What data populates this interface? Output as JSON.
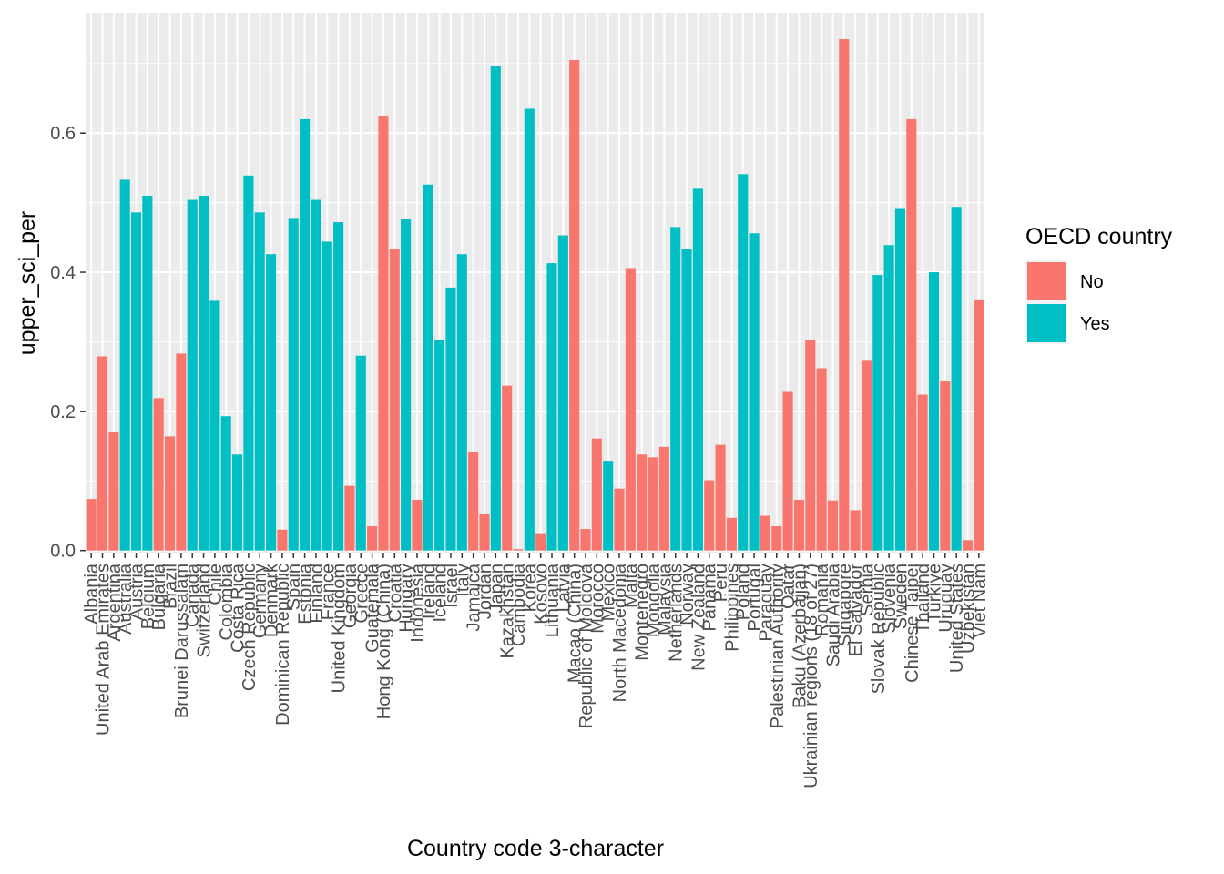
{
  "chart_data": {
    "type": "bar",
    "xlabel": "Country code 3-character",
    "ylabel": "upper_sci_per",
    "ylim": [
      -0.003,
      0.773
    ],
    "yticks": [
      0.0,
      0.2,
      0.4,
      0.6
    ],
    "ytick_labels": [
      "0.0",
      "0.2",
      "0.4",
      "0.6"
    ],
    "grid": true,
    "legend": {
      "title": "OECD country",
      "placement": "right",
      "entries": [
        {
          "label": "No",
          "key": "No",
          "color": "#F8766D"
        },
        {
          "label": "Yes",
          "key": "Yes",
          "color": "#00BFC4"
        }
      ]
    },
    "categories": [
      "Albania",
      "United Arab Emirates",
      "Argentina",
      "Australia",
      "Austria",
      "Belgium",
      "Bulgaria",
      "Brazil",
      "Brunei Darussalam",
      "Canada",
      "Switzerland",
      "Chile",
      "Colombia",
      "Costa Rica",
      "Czech Republic",
      "Germany",
      "Denmark",
      "Dominican Republic",
      "Spain",
      "Estonia",
      "Finland",
      "France",
      "United Kingdom",
      "Georgia",
      "Greece",
      "Guatemala",
      "Hong Kong (China)",
      "Croatia",
      "Hungary",
      "Indonesia",
      "Ireland",
      "Iceland",
      "Israel",
      "Italy",
      "Jamaica",
      "Jordan",
      "Japan",
      "Kazakhstan",
      "Cambodia",
      "Korea",
      "Kosovo",
      "Lithuania",
      "Latvia",
      "Macao (China)",
      "Republic of Moldova",
      "Morocco",
      "Mexico",
      "North Macedonia",
      "Malta",
      "Montenegro",
      "Mongolia",
      "Malaysia",
      "Netherlands",
      "Norway",
      "New Zealand",
      "Panama",
      "Peru",
      "Philippines",
      "Poland",
      "Portugal",
      "Paraguay",
      "Palestinian Authority",
      "Qatar",
      "Baku (Azerbaijan)",
      "Ukrainian regions (18 of 27)",
      "Romania",
      "Saudi Arabia",
      "Singapore",
      "El Salvador",
      "Serbia",
      "Slovak Republic",
      "Slovenia",
      "Sweden",
      "Chinese Taipei",
      "Thailand",
      "Turkiye",
      "Uruguay",
      "United States",
      "Uzbekistan",
      "Viet Nam"
    ],
    "series": [
      {
        "key": "No",
        "values": [
          0.074,
          0.279,
          0.171,
          0,
          0,
          0,
          0.219,
          0.164,
          0.283,
          0,
          0,
          0,
          0,
          0,
          0,
          0,
          0,
          0.03,
          0,
          0,
          0,
          0,
          0,
          0.093,
          0,
          0.035,
          0.625,
          0.433,
          0,
          0.073,
          0,
          0,
          0,
          0,
          0.141,
          0.052,
          0,
          0.237,
          0.002,
          0,
          0.025,
          0,
          0,
          0.705,
          0.031,
          0.161,
          0,
          0.089,
          0.406,
          0.138,
          0.134,
          0.149,
          0,
          0,
          0,
          0.101,
          0.152,
          0.047,
          0,
          0,
          0.05,
          0.035,
          0.228,
          0.073,
          0.303,
          0.262,
          0.072,
          0.735,
          0.058,
          0.274,
          0,
          0,
          0,
          0.62,
          0.224,
          0,
          0.243,
          0,
          0.015,
          0.361
        ]
      },
      {
        "key": "Yes",
        "values": [
          0,
          0,
          0,
          0.533,
          0.486,
          0.51,
          0,
          0,
          0,
          0.504,
          0.51,
          0.359,
          0.193,
          0.138,
          0.539,
          0.486,
          0.426,
          0,
          0.478,
          0.62,
          0.504,
          0.444,
          0.472,
          0,
          0.28,
          0,
          0,
          0,
          0.476,
          0,
          0.526,
          0.302,
          0.378,
          0.426,
          0,
          0,
          0.696,
          0,
          0,
          0.635,
          0,
          0.413,
          0.453,
          0,
          0,
          0,
          0.129,
          0,
          0,
          0,
          0,
          0,
          0.465,
          0.434,
          0.52,
          0,
          0,
          0,
          0.541,
          0.456,
          0,
          0,
          0,
          0,
          0,
          0,
          0,
          0,
          0,
          0,
          0.396,
          0.439,
          0.491,
          0,
          0,
          0.4,
          0,
          0.494,
          0,
          0
        ]
      }
    ]
  }
}
